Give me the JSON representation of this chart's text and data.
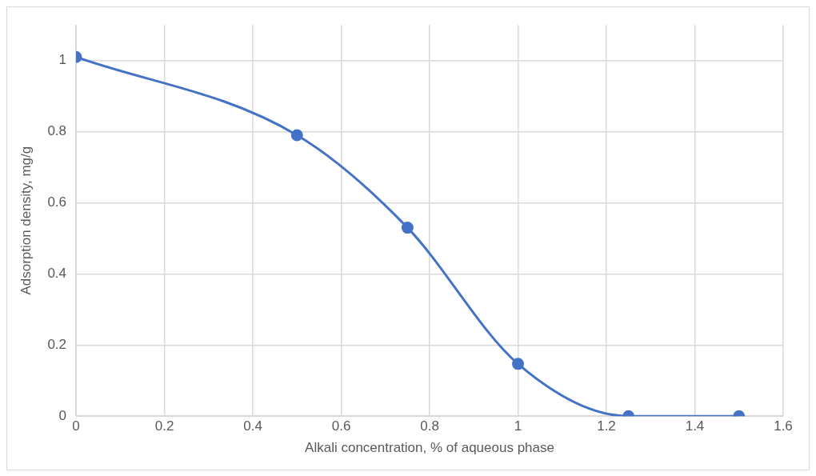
{
  "chart_data": {
    "type": "line",
    "xlabel": "Alkali concentration, % of aqueous phase",
    "ylabel": "Adsorption density, mg/g",
    "x": [
      0,
      0.5,
      0.75,
      1,
      1.25,
      1.5
    ],
    "series": [
      {
        "color": "#4472c4",
        "values": [
          1.01,
          0.79,
          0.53,
          0.147,
          0,
          0
        ]
      }
    ],
    "xlim": [
      0,
      1.6
    ],
    "xticks": [
      0,
      0.2,
      0.4,
      0.6,
      0.8,
      1,
      1.2,
      1.4,
      1.6
    ],
    "ylim": [
      0,
      1.1
    ],
    "yticks": [
      0,
      0.2,
      0.4,
      0.6,
      0.8,
      1
    ],
    "grid": true,
    "legend": false,
    "marker": "circle",
    "line_style": "solid"
  }
}
